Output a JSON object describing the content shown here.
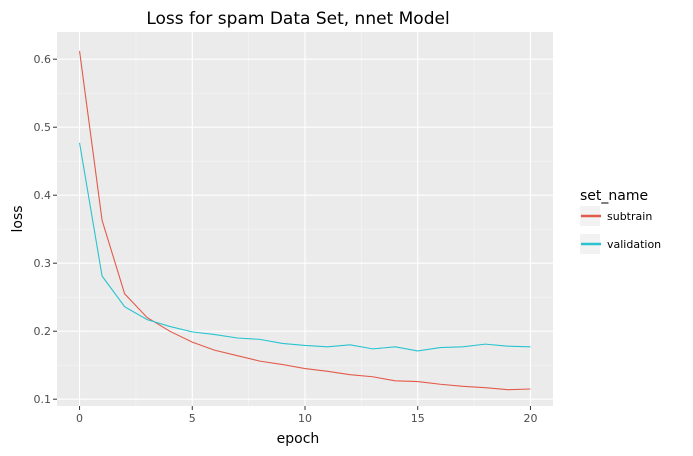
{
  "chart_data": {
    "type": "line",
    "title": "Loss for spam Data Set, nnet Model",
    "xlabel": "epoch",
    "ylabel": "loss",
    "xlim": [
      -1,
      21
    ],
    "ylim": [
      0.09,
      0.64
    ],
    "x_ticks": [
      0,
      5,
      10,
      15,
      20
    ],
    "x_tick_labels": [
      "0",
      "5",
      "10",
      "15",
      "20"
    ],
    "y_ticks": [
      0.1,
      0.2,
      0.3,
      0.4,
      0.5,
      0.6
    ],
    "y_tick_labels": [
      "0.1",
      "0.2",
      "0.3",
      "0.4",
      "0.5",
      "0.6"
    ],
    "grid": true,
    "legend": {
      "title": "set_name",
      "position": "right"
    },
    "x": [
      0,
      1,
      2,
      3,
      4,
      5,
      6,
      7,
      8,
      9,
      10,
      11,
      12,
      13,
      14,
      15,
      16,
      17,
      18,
      19,
      20
    ],
    "series": [
      {
        "name": "subtrain",
        "color": "#e35a4a",
        "values": [
          0.612,
          0.363,
          0.255,
          0.22,
          0.2,
          0.184,
          0.172,
          0.164,
          0.156,
          0.151,
          0.145,
          0.141,
          0.136,
          0.133,
          0.127,
          0.126,
          0.122,
          0.119,
          0.117,
          0.114,
          0.115
        ]
      },
      {
        "name": "validation",
        "color": "#29c3cf",
        "values": [
          0.477,
          0.281,
          0.236,
          0.217,
          0.207,
          0.199,
          0.195,
          0.19,
          0.188,
          0.182,
          0.179,
          0.177,
          0.18,
          0.174,
          0.177,
          0.171,
          0.176,
          0.177,
          0.181,
          0.178,
          0.177
        ]
      }
    ]
  }
}
